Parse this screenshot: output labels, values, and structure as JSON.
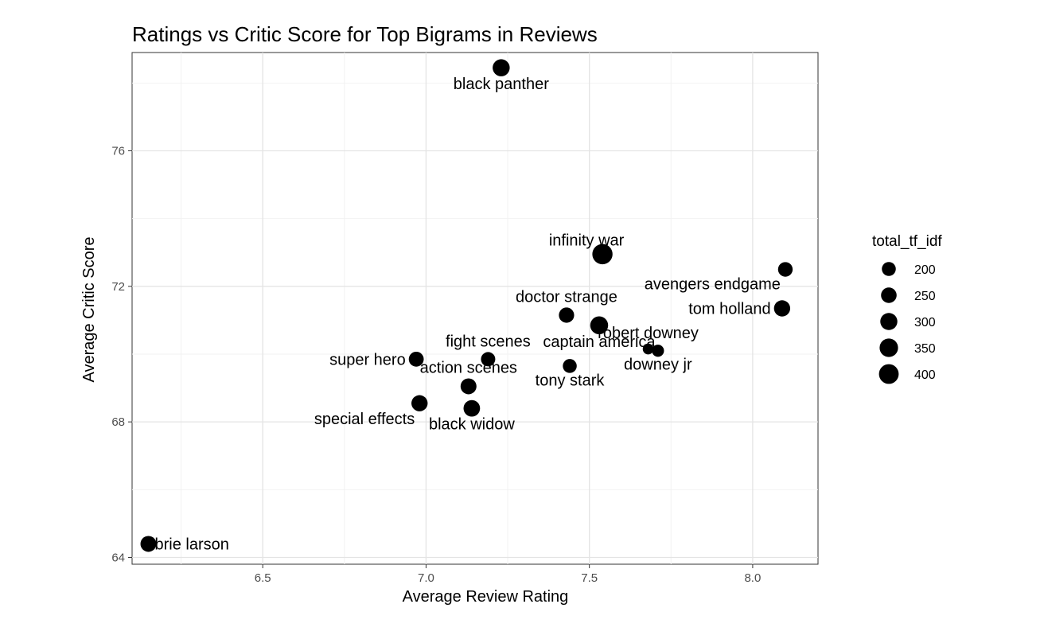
{
  "chart_data": {
    "type": "scatter",
    "title": "Ratings vs Critic Score for Top Bigrams in Reviews",
    "xlabel": "Average Review Rating",
    "ylabel": "Average Critic Score",
    "xlim": [
      6.1,
      8.2
    ],
    "ylim": [
      63.8,
      78.9
    ],
    "x_ticks": [
      6.5,
      7.0,
      7.5,
      8.0
    ],
    "x_tick_labels": [
      "6.5",
      "7.0",
      "7.5",
      "8.0"
    ],
    "y_ticks": [
      64,
      68,
      72,
      76
    ],
    "y_tick_labels": [
      "64",
      "68",
      "72",
      "76"
    ],
    "grid": true,
    "point_color": "#000000",
    "points": [
      {
        "label": "black panther",
        "x": 7.23,
        "y": 78.45,
        "size": 300,
        "label_pos": "below"
      },
      {
        "label": "infinity war",
        "x": 7.54,
        "y": 72.95,
        "size": 420,
        "label_pos": "above-left"
      },
      {
        "label": "avengers endgame",
        "x": 8.1,
        "y": 72.5,
        "size": 220,
        "label_pos": "below-left"
      },
      {
        "label": "tom holland",
        "x": 8.09,
        "y": 71.35,
        "size": 270,
        "label_pos": "left"
      },
      {
        "label": "doctor strange",
        "x": 7.43,
        "y": 71.15,
        "size": 240,
        "label_pos": "above"
      },
      {
        "label": "captain america",
        "x": 7.53,
        "y": 70.85,
        "size": 330,
        "label_pos": "below"
      },
      {
        "label": "robert downey",
        "x": 7.68,
        "y": 70.15,
        "size": 120,
        "label_pos": "above"
      },
      {
        "label": "downey jr",
        "x": 7.71,
        "y": 70.1,
        "size": 150,
        "label_pos": "below"
      },
      {
        "label": "super hero",
        "x": 6.97,
        "y": 69.85,
        "size": 230,
        "label_pos": "left"
      },
      {
        "label": "fight scenes",
        "x": 7.19,
        "y": 69.85,
        "size": 210,
        "label_pos": "above"
      },
      {
        "label": "tony stark",
        "x": 7.44,
        "y": 69.65,
        "size": 200,
        "label_pos": "below"
      },
      {
        "label": "action scenes",
        "x": 7.13,
        "y": 69.05,
        "size": 260,
        "label_pos": "above"
      },
      {
        "label": "special effects",
        "x": 6.98,
        "y": 68.55,
        "size": 270,
        "label_pos": "below-left"
      },
      {
        "label": "black widow",
        "x": 7.14,
        "y": 68.4,
        "size": 280,
        "label_pos": "below"
      },
      {
        "label": "brie larson",
        "x": 6.15,
        "y": 64.4,
        "size": 260,
        "label_pos": "right"
      }
    ],
    "legend": {
      "title": "total_tf_idf",
      "position": "right",
      "entries": [
        {
          "label": "200",
          "size": 200
        },
        {
          "label": "250",
          "size": 250
        },
        {
          "label": "300",
          "size": 300
        },
        {
          "label": "350",
          "size": 350
        },
        {
          "label": "400",
          "size": 400
        }
      ]
    }
  }
}
